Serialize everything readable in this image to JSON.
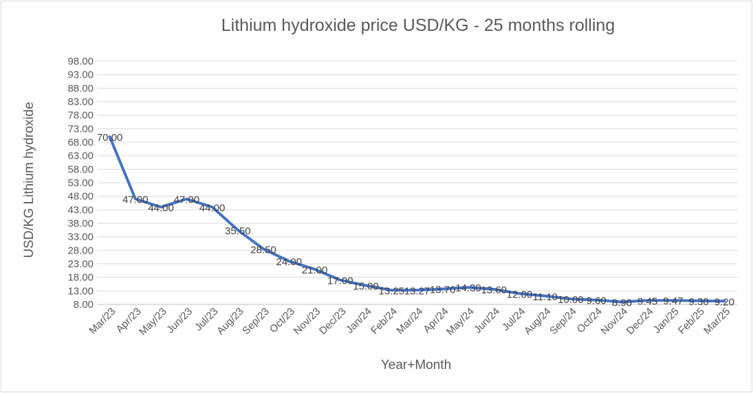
{
  "chart_data": {
    "type": "line",
    "title": "Lithium hydroxide price USD/KG   - 25 months rolling",
    "xlabel": "Year+Month",
    "ylabel": "USD/KG Lithium hydroxide",
    "categories": [
      "Mar/23",
      "Apr/23",
      "May/23",
      "Jun/23",
      "Jul/23",
      "Aug/23",
      "Sep/23",
      "Oct/23",
      "Nov/23",
      "Dec/23",
      "Jan/24",
      "Feb/24",
      "Mar/24",
      "Apr/24",
      "May/24",
      "Jun/24",
      "Jul/24",
      "Aug/24",
      "Sep/24",
      "Oct/24",
      "Nov/24",
      "Dec/24",
      "Jan/25",
      "Feb/25",
      "Mar/25"
    ],
    "yticks": [
      "8.00",
      "13.00",
      "18.00",
      "23.00",
      "28.00",
      "33.00",
      "38.00",
      "43.00",
      "48.00",
      "53.00",
      "58.00",
      "63.00",
      "68.00",
      "73.00",
      "78.00",
      "83.00",
      "88.00",
      "93.00",
      "98.00"
    ],
    "ylim": [
      8,
      98
    ],
    "grid": true,
    "line_color": "#4472c4",
    "series": [
      {
        "values": [
          70.0,
          47.0,
          44.0,
          47.0,
          44.0,
          35.5,
          28.5,
          24.0,
          21.0,
          17.0,
          15.0,
          13.25,
          13.27,
          13.7,
          14.3,
          13.6,
          12.0,
          11.1,
          10.0,
          9.6,
          8.9,
          9.45,
          9.47,
          9.3,
          9.2
        ],
        "labels": [
          "70.00",
          "47.00",
          "44.00",
          "47.00",
          "44.00",
          "35.50",
          "28.50",
          "24.00",
          "21.00",
          "17.00",
          "15.00",
          "13.25",
          "13.27",
          "13.70",
          "14.30",
          "13.60",
          "12.00",
          "11.10",
          "10.00",
          "9.60",
          "8.90",
          "9.45",
          "9.47",
          "9.30",
          "9.20"
        ]
      }
    ]
  }
}
